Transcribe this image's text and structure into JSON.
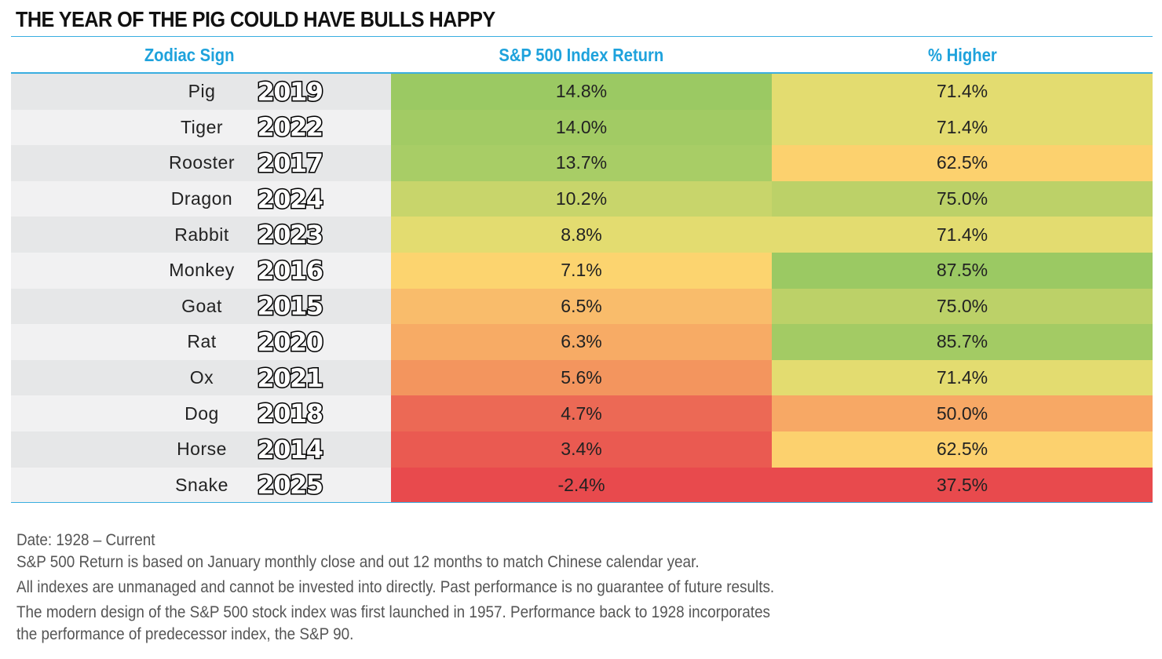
{
  "title": "THE YEAR OF THE PIG COULD HAVE BULLS HAPPY",
  "headers": {
    "sign": "Zodiac Sign",
    "return": "S&P 500 Index Return",
    "higher": "% Higher"
  },
  "rows": [
    {
      "sign": "Pig",
      "year": "2019",
      "ret": "14.8%",
      "pct": "71.4%",
      "ret_color": "#9bc963",
      "pct_color": "#e3dc70"
    },
    {
      "sign": "Tiger",
      "year": "2022",
      "ret": "14.0%",
      "pct": "71.4%",
      "ret_color": "#a2cb64",
      "pct_color": "#e3dc70"
    },
    {
      "sign": "Rooster",
      "year": "2017",
      "ret": "13.7%",
      "pct": "62.5%",
      "ret_color": "#a8cd66",
      "pct_color": "#fcd16e"
    },
    {
      "sign": "Dragon",
      "year": "2024",
      "ret": "10.2%",
      "pct": "75.0%",
      "ret_color": "#c8d56b",
      "pct_color": "#bcd168"
    },
    {
      "sign": "Rabbit",
      "year": "2023",
      "ret": "8.8%",
      "pct": "71.4%",
      "ret_color": "#e3dc70",
      "pct_color": "#e3dc70"
    },
    {
      "sign": "Monkey",
      "year": "2016",
      "ret": "7.1%",
      "pct": "87.5%",
      "ret_color": "#fcd46f",
      "pct_color": "#9bc963"
    },
    {
      "sign": "Goat",
      "year": "2015",
      "ret": "6.5%",
      "pct": "75.0%",
      "ret_color": "#f9bc6b",
      "pct_color": "#bcd168"
    },
    {
      "sign": "Rat",
      "year": "2020",
      "ret": "6.3%",
      "pct": "85.7%",
      "ret_color": "#f7ab65",
      "pct_color": "#a3cb64"
    },
    {
      "sign": "Ox",
      "year": "2021",
      "ret": "5.6%",
      "pct": "71.4%",
      "ret_color": "#f3955e",
      "pct_color": "#e3dc70"
    },
    {
      "sign": "Dog",
      "year": "2018",
      "ret": "4.7%",
      "pct": "50.0%",
      "ret_color": "#ec6955",
      "pct_color": "#f7a865"
    },
    {
      "sign": "Horse",
      "year": "2014",
      "ret": "3.4%",
      "pct": "62.5%",
      "ret_color": "#ea5a51",
      "pct_color": "#fcd16e"
    },
    {
      "sign": "Snake",
      "year": "2025",
      "ret": "-2.4%",
      "pct": "37.5%",
      "ret_color": "#e84a4d",
      "pct_color": "#e84a4d"
    }
  ],
  "label_colors": {
    "odd": "#e6e7e8",
    "even": "#f1f1f2"
  },
  "notes": [
    "Date: 1928 – Current",
    "S&P 500 Return is based on January monthly close and out 12 months to match Chinese calendar year.",
    "All indexes are unmanaged and cannot be invested into directly. Past performance is no guarantee of future results.",
    "The modern design of the S&P 500 stock index was first launched in 1957. Performance back to 1928 incorporates",
    "the performance of predecessor index, the S&P 90."
  ],
  "chart_data": {
    "type": "table",
    "title": "THE YEAR OF THE PIG COULD HAVE BULLS HAPPY",
    "columns": [
      "Zodiac Sign",
      "S&P 500 Index Return",
      "% Higher"
    ],
    "rows": [
      [
        "Pig",
        "2019",
        14.8,
        71.4
      ],
      [
        "Tiger",
        "2022",
        14.0,
        71.4
      ],
      [
        "Rooster",
        "2017",
        13.7,
        62.5
      ],
      [
        "Dragon",
        "2024",
        10.2,
        75.0
      ],
      [
        "Rabbit",
        "2023",
        8.8,
        71.4
      ],
      [
        "Monkey",
        "2016",
        7.1,
        87.5
      ],
      [
        "Goat",
        "2015",
        6.5,
        75.0
      ],
      [
        "Rat",
        "2020",
        6.3,
        85.7
      ],
      [
        "Ox",
        "2021",
        5.6,
        71.4
      ],
      [
        "Dog",
        "2018",
        4.7,
        50.0
      ],
      [
        "Horse",
        "2014",
        3.4,
        62.5
      ],
      [
        "Snake",
        "2025",
        -2.4,
        37.5
      ]
    ]
  }
}
